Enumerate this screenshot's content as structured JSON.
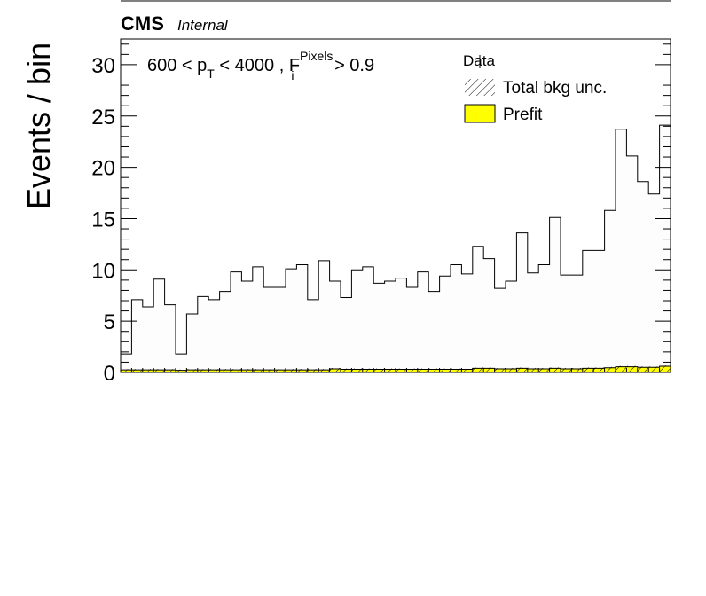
{
  "header": {
    "experiment": "CMS",
    "status": "Internal"
  },
  "chart_data": {
    "type": "bar",
    "ylabel": "Events / bin",
    "xlabel": "",
    "ylim": [
      0,
      32.5
    ],
    "yticks": [
      0,
      5,
      10,
      15,
      20,
      25,
      30
    ],
    "annotation": {
      "prefix": "600 < p",
      "sub1": "T",
      "mid": " < 4000 , F",
      "sup": "Pixels",
      "sub2": "i",
      "suffix": " > 0.9"
    },
    "legend": {
      "placement": "top-right",
      "entries": [
        {
          "label": "Data",
          "style": "marker"
        },
        {
          "label": "Total bkg unc.",
          "style": "hatch"
        },
        {
          "label": "Prefit",
          "style": "fill",
          "color": "#ffff00"
        }
      ]
    },
    "series": [
      {
        "name": "Data",
        "style": "step-fill",
        "color": "#fdfdfd",
        "line": "#000000",
        "values": [
          1.8,
          7.1,
          6.4,
          9.1,
          6.6,
          1.8,
          5.7,
          7.4,
          7.1,
          7.9,
          9.8,
          8.9,
          10.3,
          8.3,
          8.3,
          10.1,
          10.5,
          7.1,
          10.9,
          8.9,
          7.3,
          10.0,
          10.3,
          8.7,
          8.9,
          9.2,
          8.3,
          9.8,
          7.9,
          9.4,
          10.5,
          9.6,
          12.3,
          11.1,
          8.2,
          8.9,
          13.6,
          9.7,
          10.5,
          15.1,
          9.5,
          9.5,
          11.9,
          11.9,
          15.8,
          23.7,
          21.1,
          18.6,
          17.4,
          24.1
        ]
      },
      {
        "name": "Prefit",
        "style": "fill",
        "color": "#ffff00",
        "values": [
          0.25,
          0.25,
          0.25,
          0.25,
          0.25,
          0.2,
          0.25,
          0.25,
          0.25,
          0.25,
          0.25,
          0.25,
          0.25,
          0.25,
          0.25,
          0.25,
          0.25,
          0.25,
          0.25,
          0.35,
          0.3,
          0.3,
          0.3,
          0.3,
          0.3,
          0.3,
          0.3,
          0.3,
          0.3,
          0.3,
          0.3,
          0.3,
          0.4,
          0.4,
          0.35,
          0.35,
          0.4,
          0.35,
          0.35,
          0.4,
          0.35,
          0.35,
          0.4,
          0.4,
          0.45,
          0.55,
          0.55,
          0.5,
          0.5,
          0.6
        ]
      }
    ]
  }
}
